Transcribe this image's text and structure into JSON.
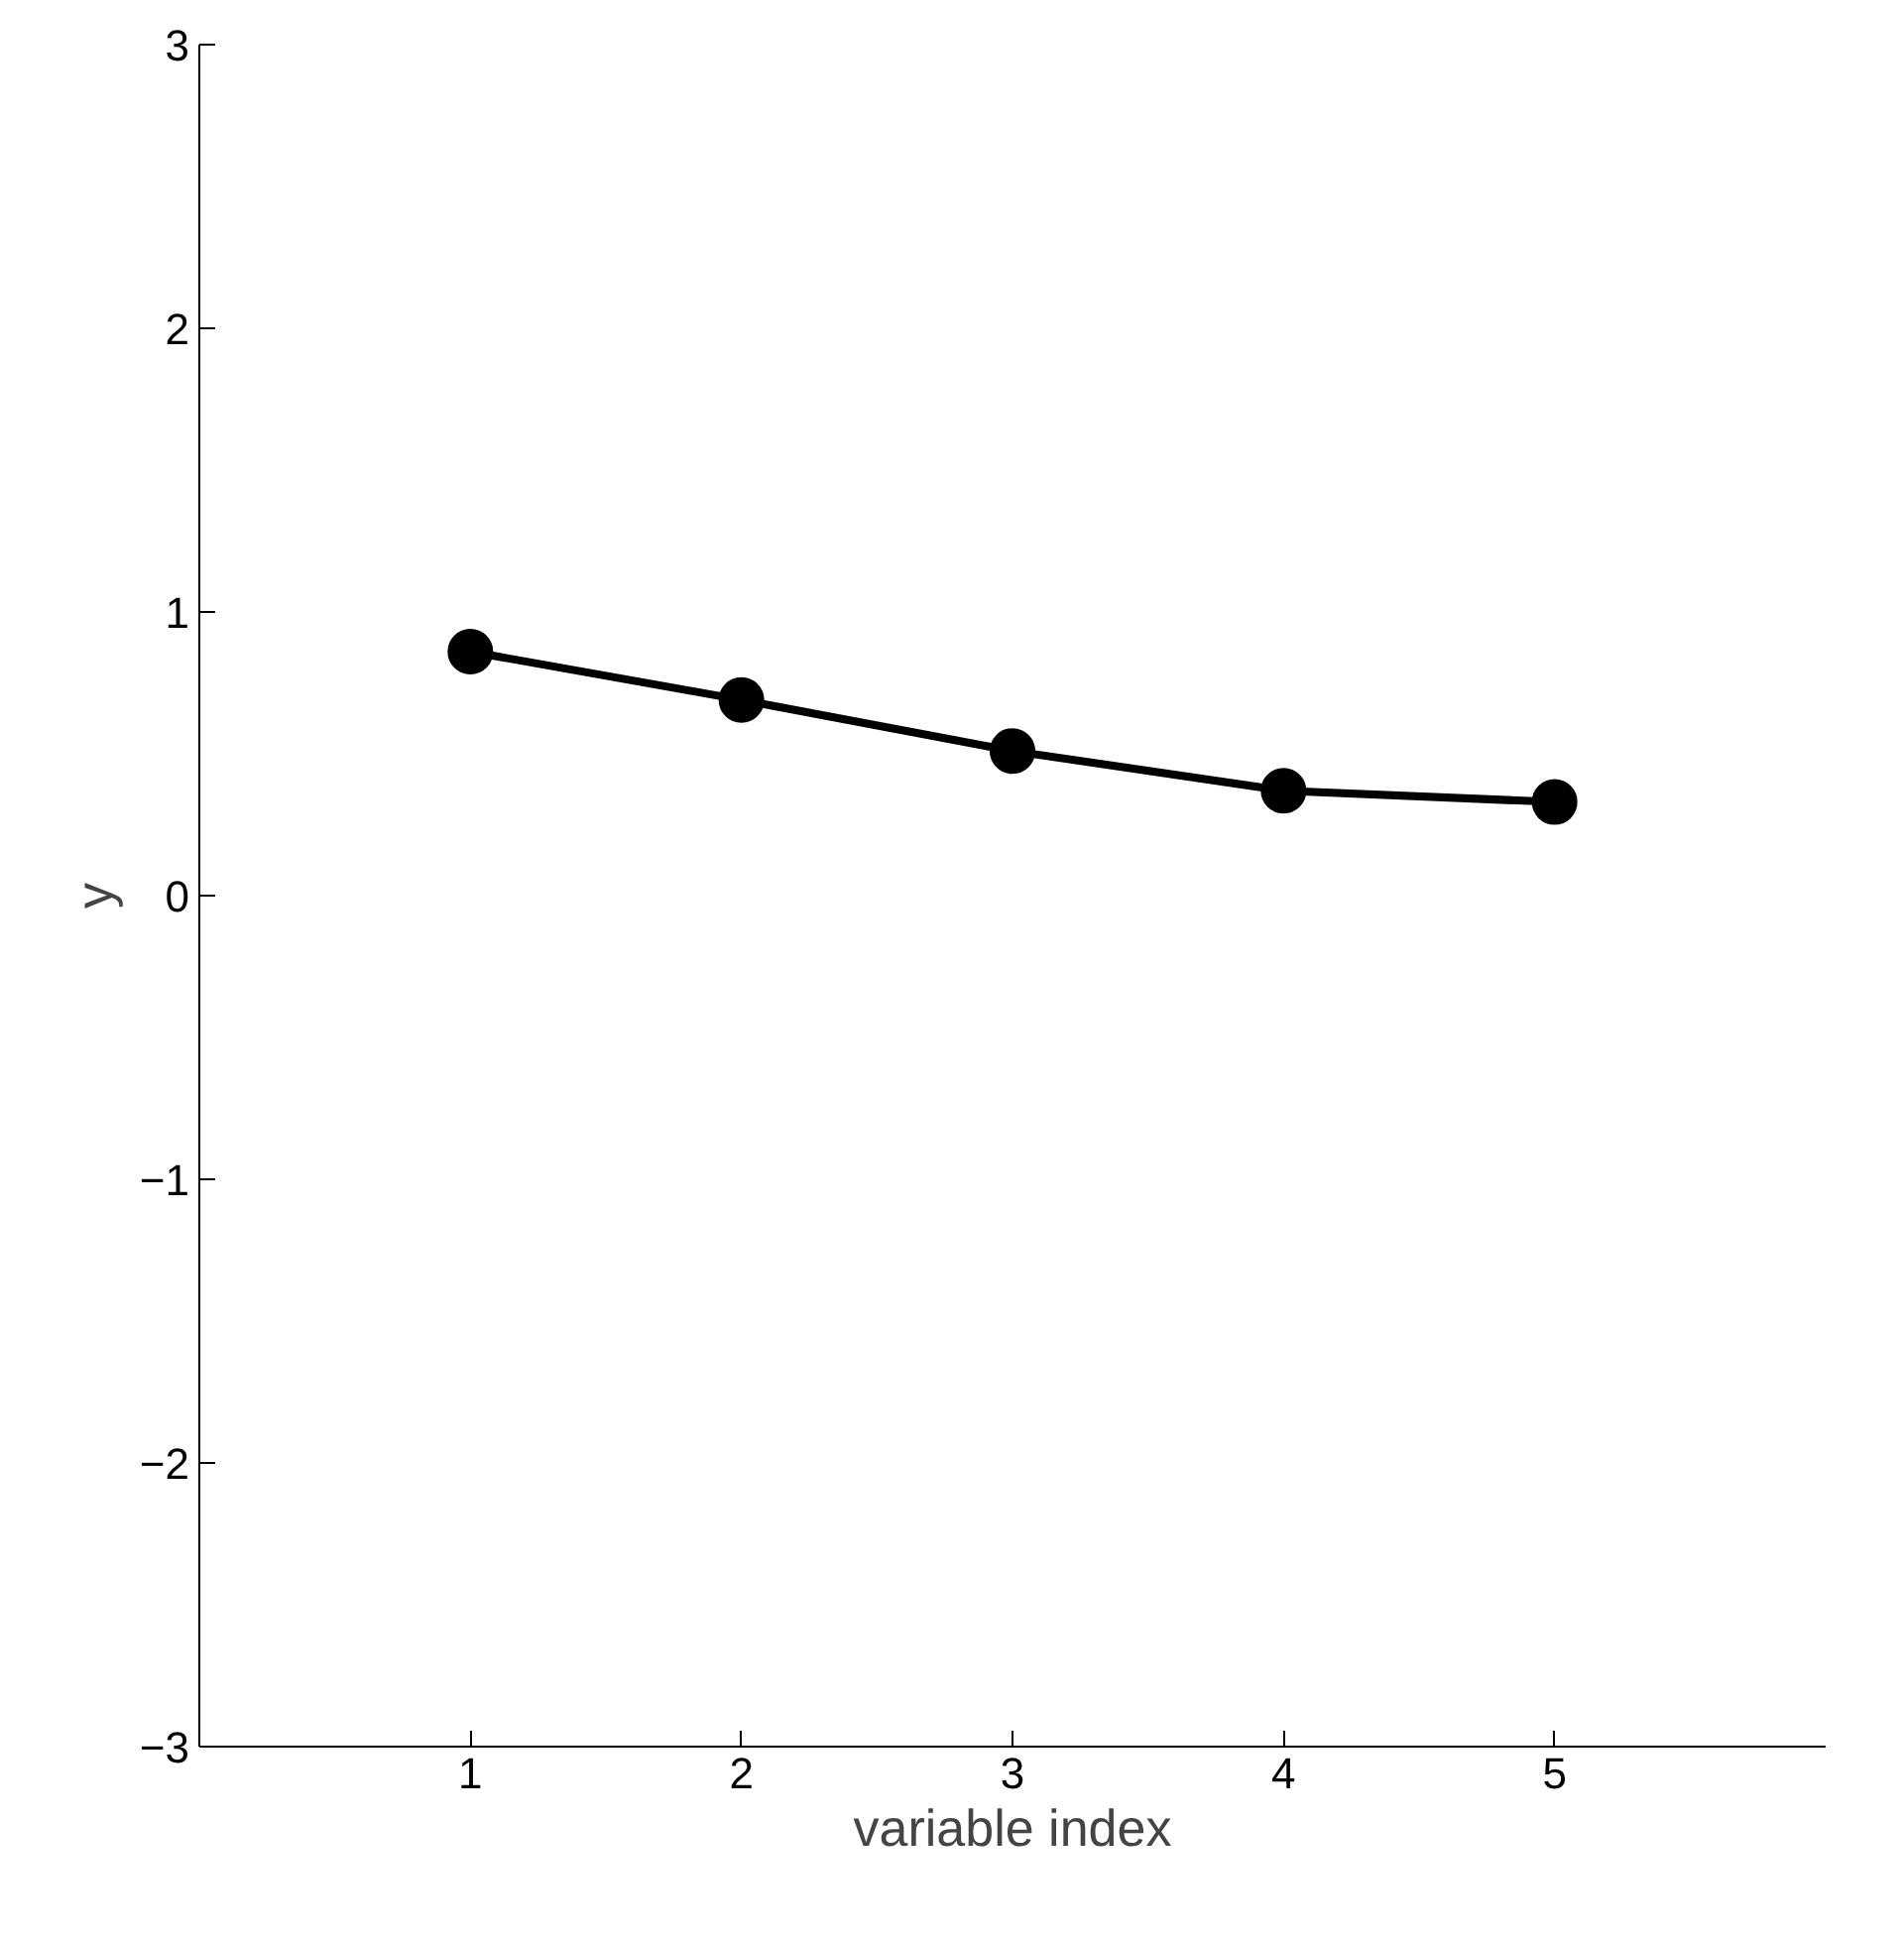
{
  "chart_data": {
    "type": "line",
    "xlabel": "variable index",
    "ylabel": "y",
    "x": [
      1,
      2,
      3,
      4,
      5
    ],
    "series": [
      {
        "color": "#000000",
        "values": [
          0.86,
          0.69,
          0.51,
          0.37,
          0.33
        ]
      }
    ],
    "xlim": [
      0,
      6
    ],
    "ylim": [
      -3,
      3
    ],
    "xticks": [
      1,
      2,
      3,
      4,
      5
    ],
    "yticks": [
      {
        "value": -3,
        "label": "−3"
      },
      {
        "value": -2,
        "label": "−2"
      },
      {
        "value": -1,
        "label": "−1"
      },
      0,
      1,
      2,
      3
    ],
    "grid": false,
    "marker": "circle",
    "line_style": "solid"
  }
}
